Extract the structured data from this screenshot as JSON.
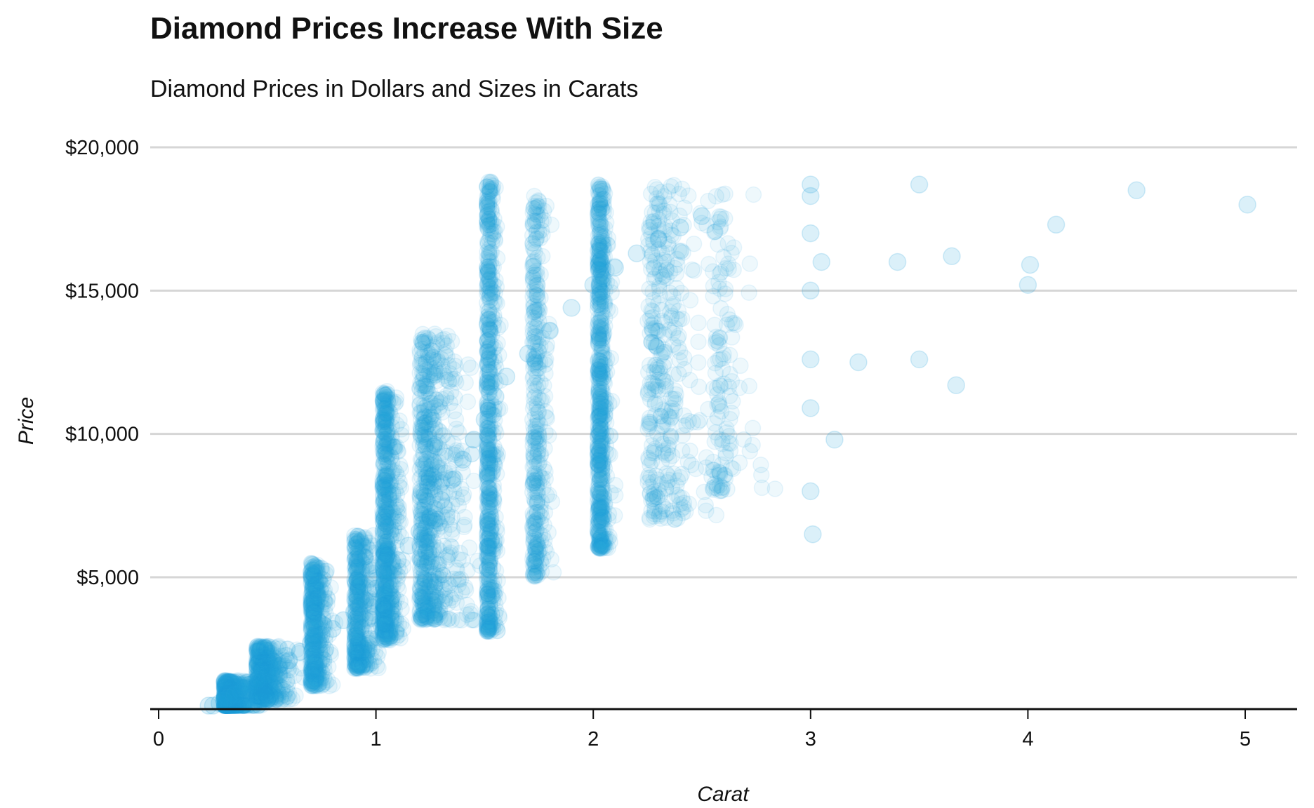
{
  "chart_data": {
    "type": "scatter",
    "title": "Diamond Prices Increase With Size",
    "subtitle": "Diamond Prices in Dollars and Sizes in Carats",
    "xlabel": "Carat",
    "ylabel": "Price",
    "xlim": [
      0,
      5.25
    ],
    "ylim": [
      500,
      20000
    ],
    "x_ticks": [
      0,
      1,
      2,
      3,
      4,
      5
    ],
    "x_tick_labels": [
      "0",
      "1",
      "2",
      "3",
      "4",
      "5"
    ],
    "y_ticks": [
      5000,
      10000,
      15000,
      20000
    ],
    "y_tick_labels": [
      "$5,000",
      "$10,000",
      "$15,000",
      "$20,000"
    ],
    "grid": "horizontal",
    "point_color": "#22a0db",
    "point_opacity": 0.08,
    "points": [
      [
        0.23,
        400
      ],
      [
        0.25,
        520
      ],
      [
        0.28,
        600
      ],
      [
        0.3,
        700
      ],
      [
        0.32,
        800
      ],
      [
        0.35,
        900
      ],
      [
        0.38,
        1000
      ],
      [
        0.4,
        1100
      ],
      [
        0.42,
        1250
      ],
      [
        0.45,
        1400
      ],
      [
        0.5,
        1600
      ],
      [
        0.55,
        1900
      ],
      [
        0.6,
        2100
      ],
      [
        0.65,
        2400
      ],
      [
        0.7,
        2700
      ],
      [
        0.75,
        3000
      ],
      [
        0.8,
        3200
      ],
      [
        0.85,
        3500
      ],
      [
        0.9,
        3800
      ],
      [
        0.95,
        4200
      ],
      [
        1.0,
        4600
      ],
      [
        1.05,
        5200
      ],
      [
        1.1,
        5600
      ],
      [
        1.15,
        6100
      ],
      [
        1.2,
        6600
      ],
      [
        1.25,
        7100
      ],
      [
        1.3,
        7700
      ],
      [
        1.35,
        8400
      ],
      [
        1.4,
        9100
      ],
      [
        1.45,
        9800
      ],
      [
        1.5,
        10500
      ],
      [
        1.55,
        11300
      ],
      [
        1.6,
        12000
      ],
      [
        1.7,
        12800
      ],
      [
        1.8,
        13600
      ],
      [
        1.9,
        14400
      ],
      [
        2.0,
        15200
      ],
      [
        2.1,
        15800
      ],
      [
        2.2,
        16300
      ],
      [
        2.3,
        16800
      ],
      [
        2.4,
        17200
      ],
      [
        2.5,
        17600
      ],
      [
        3.0,
        18300
      ],
      [
        3.0,
        18700
      ],
      [
        3.0,
        17000
      ],
      [
        3.0,
        15000
      ],
      [
        3.0,
        12600
      ],
      [
        3.0,
        10900
      ],
      [
        3.0,
        8000
      ],
      [
        3.01,
        6500
      ],
      [
        3.05,
        16000
      ],
      [
        3.11,
        9800
      ],
      [
        3.22,
        12500
      ],
      [
        3.4,
        16000
      ],
      [
        3.5,
        18700
      ],
      [
        3.5,
        12600
      ],
      [
        3.65,
        16200
      ],
      [
        3.67,
        11700
      ],
      [
        4.0,
        15200
      ],
      [
        4.01,
        15900
      ],
      [
        4.13,
        17300
      ],
      [
        4.5,
        18500
      ],
      [
        5.01,
        18000
      ]
    ]
  }
}
